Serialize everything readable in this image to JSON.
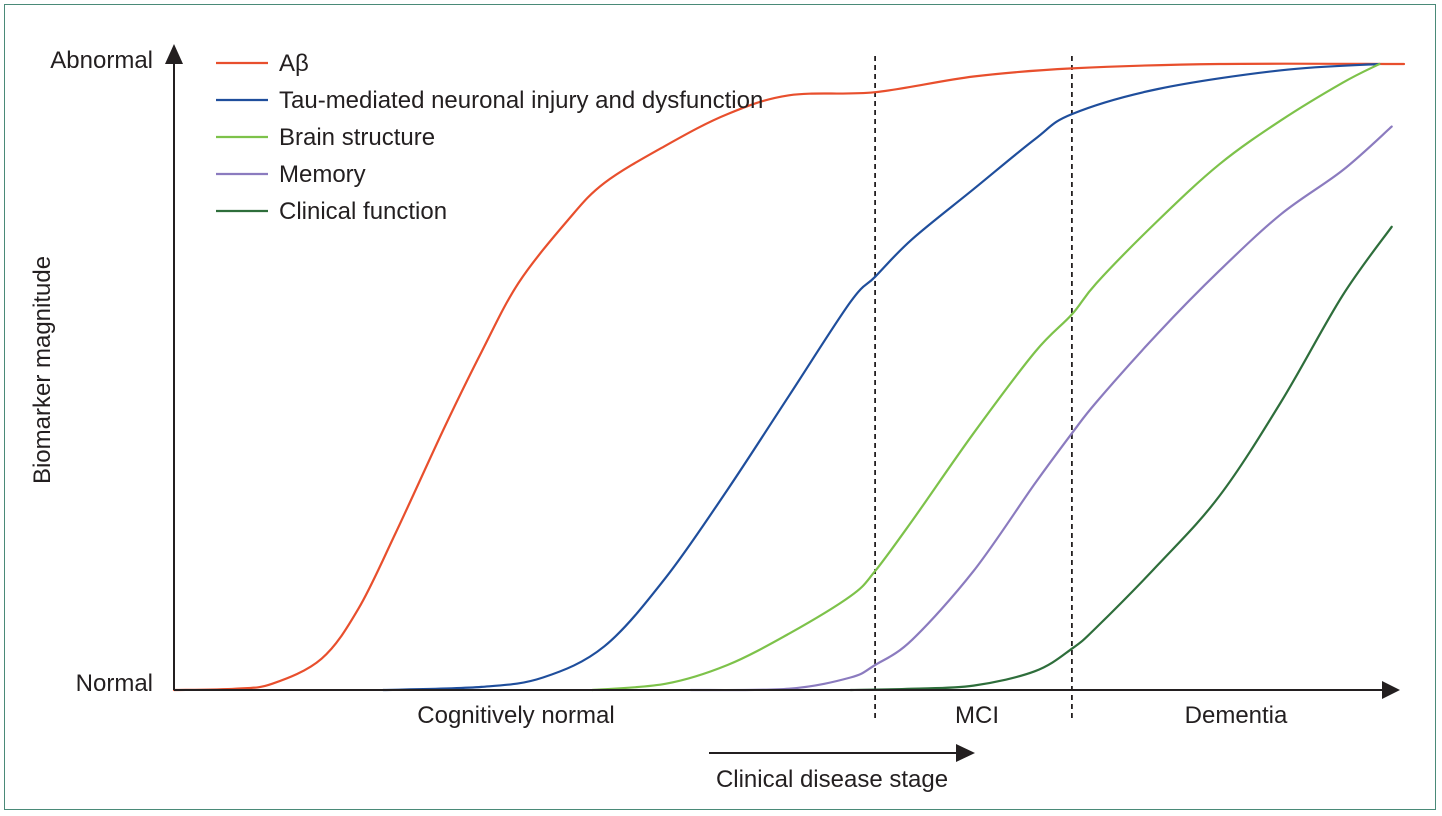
{
  "chart_data": {
    "type": "line",
    "ylabel": "Biomarker magnitude",
    "y_ticks": {
      "top": "Abnormal",
      "bottom": "Normal"
    },
    "x_stages": [
      "Cognitively normal",
      "MCI",
      "Dementia"
    ],
    "x_arrow_label": "Clinical disease stage",
    "x_range": [
      0,
      100
    ],
    "y_range": [
      0,
      1
    ],
    "stage_boundaries": [
      57,
      73
    ],
    "legend_position": "top-left",
    "series": [
      {
        "name": "Aβ",
        "color": "#e84f2d",
        "x": [
          0,
          5,
          8,
          12,
          15,
          18,
          22,
          25,
          28,
          32,
          35,
          40,
          45,
          50,
          57,
          65,
          73,
          85,
          100
        ],
        "y": [
          0,
          0.002,
          0.01,
          0.05,
          0.13,
          0.25,
          0.42,
          0.54,
          0.65,
          0.75,
          0.81,
          0.87,
          0.92,
          0.95,
          0.955,
          0.98,
          0.993,
          1.0,
          1.0
        ]
      },
      {
        "name": "Tau-mediated neuronal injury and dysfunction",
        "color": "#1f4e9c",
        "x": [
          17,
          25,
          30,
          35,
          40,
          45,
          50,
          55,
          57,
          60,
          65,
          70,
          73,
          80,
          90,
          98
        ],
        "y": [
          0,
          0.005,
          0.02,
          0.07,
          0.18,
          0.32,
          0.47,
          0.62,
          0.66,
          0.72,
          0.8,
          0.88,
          0.92,
          0.96,
          0.99,
          1.0
        ]
      },
      {
        "name": "Brain structure",
        "color": "#7dc24a",
        "x": [
          34,
          40,
          45,
          50,
          55,
          57,
          60,
          65,
          70,
          73,
          75,
          80,
          85,
          90,
          95,
          98
        ],
        "y": [
          0,
          0.01,
          0.04,
          0.09,
          0.15,
          0.19,
          0.27,
          0.41,
          0.54,
          0.6,
          0.65,
          0.75,
          0.84,
          0.91,
          0.97,
          1.0
        ]
      },
      {
        "name": "Memory",
        "color": "#8b7bbf",
        "x": [
          42,
          50,
          55,
          57,
          60,
          65,
          70,
          73,
          75,
          80,
          85,
          90,
          95,
          99
        ],
        "y": [
          0,
          0.002,
          0.02,
          0.04,
          0.08,
          0.19,
          0.33,
          0.41,
          0.46,
          0.57,
          0.67,
          0.76,
          0.83,
          0.9
        ]
      },
      {
        "name": "Clinical function",
        "color": "#2e6e3b",
        "x": [
          55,
          60,
          65,
          70,
          73,
          75,
          80,
          85,
          90,
          95,
          99
        ],
        "y": [
          0,
          0.002,
          0.007,
          0.03,
          0.066,
          0.1,
          0.2,
          0.31,
          0.46,
          0.63,
          0.74
        ]
      }
    ]
  }
}
